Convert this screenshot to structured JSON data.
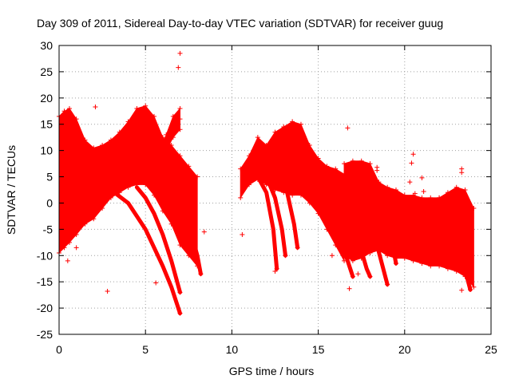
{
  "chart_data": {
    "type": "scatter",
    "title": "Day 309 of 2011, Sidereal Day-to-day VTEC variation (SDTVAR) for receiver guug",
    "xlabel": "GPS time / hours",
    "ylabel": "SDTVAR / TECUs",
    "xlim": [
      0,
      25
    ],
    "ylim": [
      -25,
      30
    ],
    "xticks": [
      0,
      5,
      10,
      15,
      20,
      25
    ],
    "yticks": [
      -25,
      -20,
      -15,
      -10,
      -5,
      0,
      5,
      10,
      15,
      20,
      25,
      30
    ],
    "grid": true,
    "series_color": "#ff0000",
    "marker": "plus",
    "dense_bands": [
      {
        "name": "arc-0-8h",
        "x": [
          0.0,
          0.3,
          0.6,
          1.0,
          1.5,
          2.0,
          2.5,
          3.0,
          3.5,
          4.0,
          4.5,
          5.0,
          5.5,
          6.0,
          6.5,
          7.0,
          7.5,
          8.0
        ],
        "upper": [
          16.5,
          17.5,
          18.0,
          16.0,
          12.0,
          10.5,
          11.0,
          12.0,
          13.5,
          15.5,
          18.0,
          18.5,
          16.5,
          12.5,
          11.0,
          9.0,
          7.0,
          5.0
        ],
        "lower": [
          -9.5,
          -8.5,
          -7.5,
          -6.0,
          -4.0,
          -3.0,
          -1.0,
          1.0,
          2.0,
          3.0,
          3.5,
          3.5,
          1.5,
          -1.5,
          -4.0,
          -8.0,
          -10.0,
          -12.0
        ]
      },
      {
        "name": "arc-6-7h",
        "x": [
          5.8,
          6.2,
          6.6,
          7.0
        ],
        "upper": [
          9.5,
          13.0,
          16.5,
          18.0
        ],
        "lower": [
          8.0,
          10.0,
          12.5,
          14.0
        ]
      },
      {
        "name": "arc-10-16.5h",
        "x": [
          10.5,
          11.0,
          11.5,
          12.0,
          12.5,
          13.0,
          13.5,
          14.0,
          14.5,
          15.0,
          15.5,
          16.0,
          16.5
        ],
        "upper": [
          6.5,
          9.0,
          12.5,
          11.0,
          13.5,
          14.5,
          15.5,
          15.0,
          11.0,
          8.5,
          7.0,
          6.5,
          5.5
        ],
        "lower": [
          1.0,
          3.5,
          4.5,
          3.5,
          2.5,
          2.0,
          1.5,
          1.5,
          0.0,
          -2.0,
          -5.0,
          -8.0,
          -11.0
        ]
      },
      {
        "name": "arc-16.5-24h",
        "x": [
          16.5,
          17.0,
          17.5,
          18.0,
          18.5,
          19.0,
          19.5,
          20.0,
          20.5,
          21.0,
          21.5,
          22.0,
          22.5,
          23.0,
          23.5,
          24.0
        ],
        "upper": [
          7.5,
          8.0,
          8.0,
          7.5,
          4.0,
          3.0,
          2.5,
          1.5,
          1.5,
          1.0,
          1.0,
          1.0,
          2.0,
          3.0,
          2.5,
          -1.0
        ],
        "lower": [
          -10.0,
          -11.0,
          -10.5,
          -9.5,
          -9.0,
          -10.0,
          -10.5,
          -10.5,
          -11.0,
          -11.5,
          -12.0,
          -12.0,
          -12.5,
          -13.0,
          -14.0,
          -16.0
        ]
      }
    ],
    "dips": [
      {
        "x": [
          2.0,
          3.0,
          4.0,
          5.0,
          6.0,
          6.5,
          7.0
        ],
        "y": [
          5.0,
          2.5,
          0.0,
          -5.0,
          -12.0,
          -16.0,
          -21.0
        ]
      },
      {
        "x": [
          4.5,
          5.0,
          5.5,
          6.0,
          6.5,
          7.0
        ],
        "y": [
          3.0,
          1.0,
          -2.0,
          -6.0,
          -11.0,
          -17.0
        ]
      },
      {
        "x": [
          6.0,
          6.5,
          7.0,
          7.5,
          8.0,
          8.2
        ],
        "y": [
          5.0,
          3.0,
          0.0,
          -4.0,
          -10.0,
          -13.5
        ]
      },
      {
        "x": [
          11.5,
          12.0,
          12.4,
          12.6
        ],
        "y": [
          5.0,
          2.0,
          -5.0,
          -12.5
        ]
      },
      {
        "x": [
          12.0,
          12.5,
          12.9,
          13.1
        ],
        "y": [
          5.0,
          1.0,
          -5.0,
          -10.0
        ]
      },
      {
        "x": [
          12.8,
          13.2,
          13.6,
          13.8
        ],
        "y": [
          5.0,
          2.0,
          -4.0,
          -8.5
        ]
      },
      {
        "x": [
          16.0,
          16.4,
          16.8,
          17.0
        ],
        "y": [
          -3.0,
          -8.0,
          -12.0,
          -14.0
        ]
      },
      {
        "x": [
          17.0,
          17.4,
          17.8,
          18.0
        ],
        "y": [
          -3.0,
          -8.0,
          -12.5,
          -14.0
        ]
      },
      {
        "x": [
          18.0,
          18.4,
          18.8,
          19.0
        ],
        "y": [
          -3.0,
          -8.0,
          -13.0,
          -15.5
        ]
      },
      {
        "x": [
          19.0,
          19.3,
          19.5
        ],
        "y": [
          -4.0,
          -8.0,
          -11.5
        ]
      },
      {
        "x": [
          23.0,
          23.3,
          23.6,
          23.8
        ],
        "y": [
          -6.0,
          -10.0,
          -14.0,
          -16.5
        ]
      }
    ],
    "outliers": [
      {
        "x": 7.0,
        "y": 28.5
      },
      {
        "x": 6.9,
        "y": 25.8
      },
      {
        "x": 2.1,
        "y": 18.3
      },
      {
        "x": 7.0,
        "y": 16.0
      },
      {
        "x": 2.8,
        "y": -16.8
      },
      {
        "x": 5.6,
        "y": -15.2
      },
      {
        "x": 8.4,
        "y": -5.5
      },
      {
        "x": 10.6,
        "y": -6.0
      },
      {
        "x": 12.5,
        "y": -13.0
      },
      {
        "x": 16.7,
        "y": 14.3
      },
      {
        "x": 16.8,
        "y": -16.3
      },
      {
        "x": 18.4,
        "y": 6.8
      },
      {
        "x": 18.4,
        "y": 6.2
      },
      {
        "x": 17.3,
        "y": -13.5
      },
      {
        "x": 15.8,
        "y": -10.0
      },
      {
        "x": 20.5,
        "y": 9.3
      },
      {
        "x": 20.4,
        "y": 7.6
      },
      {
        "x": 20.3,
        "y": 4.0
      },
      {
        "x": 20.6,
        "y": 1.8
      },
      {
        "x": 21.0,
        "y": 4.8
      },
      {
        "x": 21.1,
        "y": 2.2
      },
      {
        "x": 23.3,
        "y": 6.5
      },
      {
        "x": 23.3,
        "y": 5.8
      },
      {
        "x": 23.3,
        "y": -16.6
      },
      {
        "x": 22.0,
        "y": 1.0
      },
      {
        "x": 0.5,
        "y": -11.0
      },
      {
        "x": 1.0,
        "y": -8.5
      }
    ]
  }
}
